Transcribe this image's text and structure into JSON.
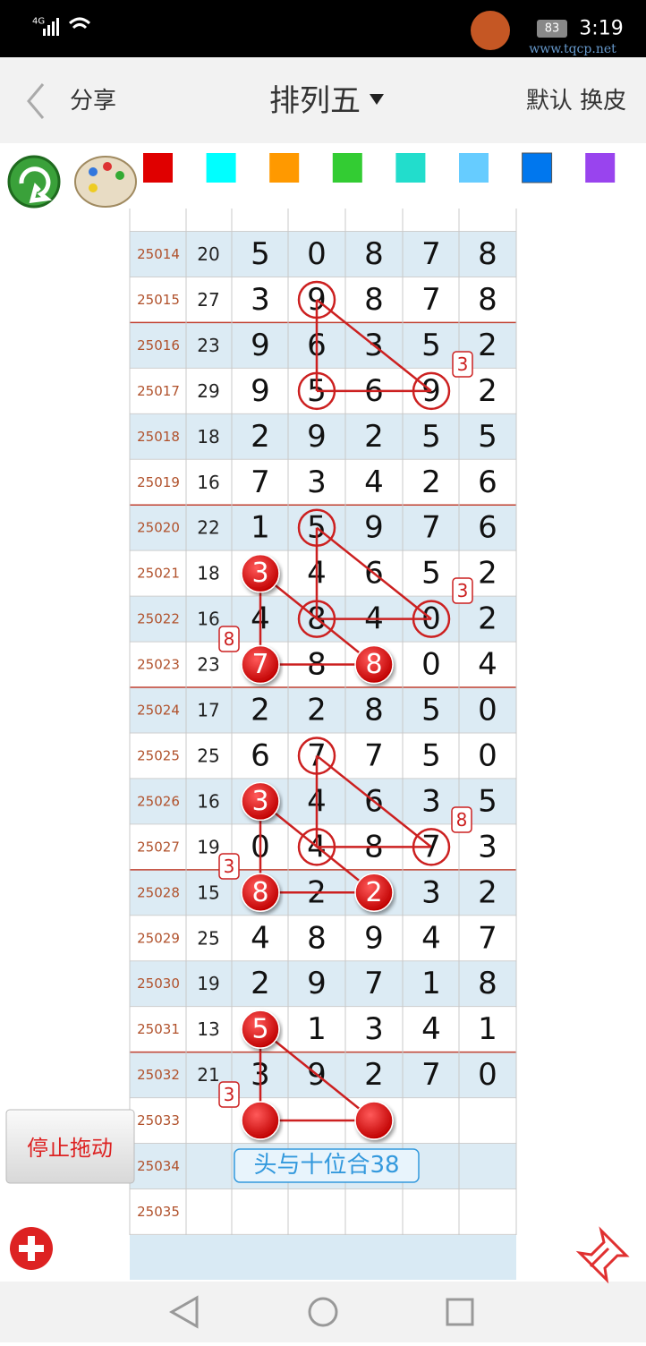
{
  "status_bar": {
    "network": "4G",
    "battery": "83",
    "time": "3:19",
    "watermark": "www.tqcp.net"
  },
  "header": {
    "share": "分享",
    "title": "排列五",
    "right": "默认 换皮"
  },
  "palette": [
    "#e00000",
    "#00ffff",
    "#ff9900",
    "#33cc33",
    "#22ddcc",
    "#66ccff",
    "#0077ee",
    "#9944ee"
  ],
  "table": {
    "rows": [
      {
        "period": "25014",
        "sum": 20,
        "digits": [
          5,
          0,
          8,
          7,
          8
        ]
      },
      {
        "period": "25015",
        "sum": 27,
        "digits": [
          3,
          9,
          8,
          7,
          8
        ]
      },
      {
        "period": "25016",
        "sum": 23,
        "digits": [
          9,
          6,
          3,
          5,
          2
        ]
      },
      {
        "period": "25017",
        "sum": 29,
        "digits": [
          9,
          5,
          6,
          9,
          2
        ]
      },
      {
        "period": "25018",
        "sum": 18,
        "digits": [
          2,
          9,
          2,
          5,
          5
        ]
      },
      {
        "period": "25019",
        "sum": 16,
        "digits": [
          7,
          3,
          4,
          2,
          6
        ]
      },
      {
        "period": "25020",
        "sum": 22,
        "digits": [
          1,
          5,
          9,
          7,
          6
        ]
      },
      {
        "period": "25021",
        "sum": 18,
        "digits": [
          3,
          4,
          6,
          5,
          2
        ]
      },
      {
        "period": "25022",
        "sum": 16,
        "digits": [
          4,
          8,
          4,
          0,
          2
        ]
      },
      {
        "period": "25023",
        "sum": 23,
        "digits": [
          7,
          8,
          8,
          0,
          4
        ]
      },
      {
        "period": "25024",
        "sum": 17,
        "digits": [
          2,
          2,
          8,
          5,
          0
        ]
      },
      {
        "period": "25025",
        "sum": 25,
        "digits": [
          6,
          7,
          7,
          5,
          0
        ]
      },
      {
        "period": "25026",
        "sum": 16,
        "digits": [
          3,
          4,
          6,
          3,
          5
        ]
      },
      {
        "period": "25027",
        "sum": 19,
        "digits": [
          0,
          4,
          8,
          7,
          3
        ]
      },
      {
        "period": "25028",
        "sum": 15,
        "digits": [
          8,
          2,
          2,
          3,
          2
        ]
      },
      {
        "period": "25029",
        "sum": 25,
        "digits": [
          4,
          8,
          9,
          4,
          7
        ]
      },
      {
        "period": "25030",
        "sum": 19,
        "digits": [
          2,
          9,
          7,
          1,
          8
        ]
      },
      {
        "period": "25031",
        "sum": 13,
        "digits": [
          5,
          1,
          3,
          4,
          1
        ]
      },
      {
        "period": "25032",
        "sum": 21,
        "digits": [
          3,
          9,
          2,
          7,
          0
        ]
      },
      {
        "period": "25033"
      },
      {
        "period": "25034"
      },
      {
        "period": "25035"
      }
    ]
  },
  "badges": [
    "3",
    "3",
    "8",
    "8",
    "3",
    "3"
  ],
  "note": "头与十位合38",
  "button": "停止拖动"
}
